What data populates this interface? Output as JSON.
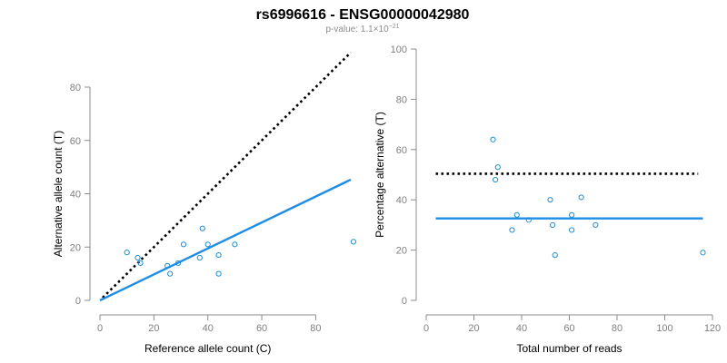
{
  "figure": {
    "title": "rs6996616 - ENSG00000042980",
    "subtitle_prefix": "p-value: 1.1×10",
    "subtitle_exponent": "−21"
  },
  "colors": {
    "points": "#1f8fd0",
    "fit": "#1e8de6",
    "reference": "#000000",
    "axis": "#8c8c8c"
  },
  "chart_data": [
    {
      "type": "scatter",
      "title": "",
      "xlabel": "Reference allele count (C)",
      "ylabel": "Alternative allele count (T)",
      "xlim": [
        0,
        93
      ],
      "ylim": [
        0,
        80
      ],
      "xticks": [
        0,
        20,
        40,
        60,
        80
      ],
      "yticks": [
        0,
        20,
        40,
        60,
        80
      ],
      "grid": false,
      "legend": "none",
      "series": [
        {
          "values": [
            {
              "x": 10,
              "y": 18
            },
            {
              "x": 14,
              "y": 16
            },
            {
              "x": 15,
              "y": 14
            },
            {
              "x": 25,
              "y": 13
            },
            {
              "x": 26,
              "y": 10
            },
            {
              "x": 29,
              "y": 14
            },
            {
              "x": 31,
              "y": 21
            },
            {
              "x": 37,
              "y": 16
            },
            {
              "x": 38,
              "y": 27
            },
            {
              "x": 40,
              "y": 21
            },
            {
              "x": 44,
              "y": 17
            },
            {
              "x": 44,
              "y": 10
            },
            {
              "x": 50,
              "y": 21
            },
            {
              "x": 94,
              "y": 22
            }
          ]
        }
      ],
      "lines": [
        {
          "role": "reference",
          "style": "dotted",
          "from": {
            "x": 1,
            "y": 1
          },
          "to": {
            "x": 93,
            "y": 93
          }
        },
        {
          "role": "fit",
          "style": "solid",
          "from": {
            "x": 0,
            "y": 0
          },
          "to": {
            "x": 93,
            "y": 45.3
          }
        }
      ]
    },
    {
      "type": "scatter",
      "title": "",
      "xlabel": "Total number of reads",
      "ylabel": "Percentage alternative (T)",
      "xlim": [
        0,
        120
      ],
      "ylim": [
        0,
        100
      ],
      "xticks": [
        0,
        20,
        40,
        60,
        80,
        100,
        120
      ],
      "yticks": [
        0,
        20,
        40,
        60,
        80,
        100
      ],
      "grid": false,
      "legend": "none",
      "series": [
        {
          "values": [
            {
              "x": 28,
              "y": 64
            },
            {
              "x": 29,
              "y": 48
            },
            {
              "x": 30,
              "y": 53
            },
            {
              "x": 36,
              "y": 28
            },
            {
              "x": 38,
              "y": 34
            },
            {
              "x": 43,
              "y": 32
            },
            {
              "x": 52,
              "y": 40
            },
            {
              "x": 53,
              "y": 30
            },
            {
              "x": 54,
              "y": 18
            },
            {
              "x": 61,
              "y": 28
            },
            {
              "x": 61,
              "y": 34
            },
            {
              "x": 65,
              "y": 41
            },
            {
              "x": 71,
              "y": 30
            },
            {
              "x": 116,
              "y": 19
            }
          ]
        }
      ],
      "lines": [
        {
          "role": "reference",
          "style": "dotted",
          "from": {
            "x": 4,
            "y": 50.4
          },
          "to": {
            "x": 114,
            "y": 50.4
          }
        },
        {
          "role": "fit",
          "style": "solid",
          "from": {
            "x": 4,
            "y": 32.6
          },
          "to": {
            "x": 116,
            "y": 32.6
          }
        }
      ]
    }
  ]
}
